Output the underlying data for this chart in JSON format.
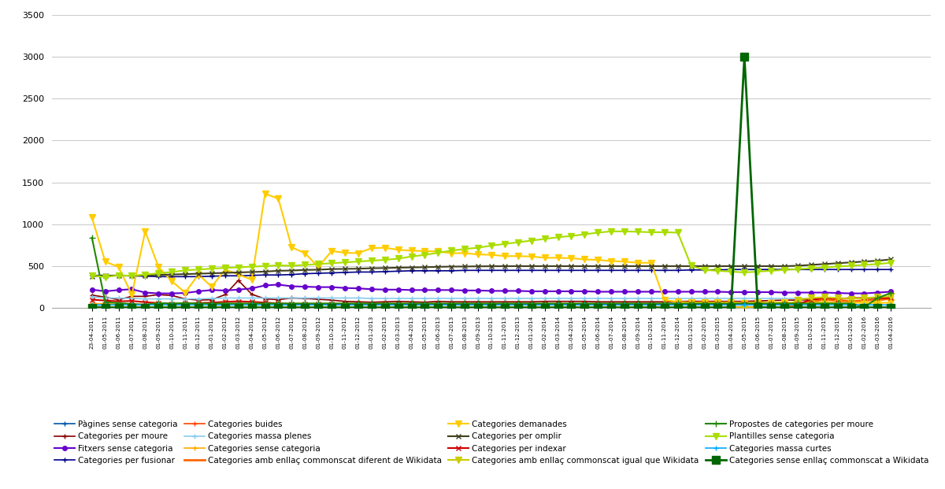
{
  "series": [
    {
      "label": "Pàgines sense categoria",
      "color": "#0055AA",
      "marker": "+",
      "markersize": 5,
      "linewidth": 1.2,
      "values": [
        18,
        15,
        12,
        14,
        12,
        10,
        10,
        10,
        10,
        10,
        10,
        10,
        10,
        10,
        10,
        10,
        10,
        10,
        10,
        10,
        10,
        10,
        10,
        10,
        10,
        10,
        10,
        10,
        10,
        10,
        10,
        10,
        10,
        10,
        10,
        10,
        10,
        10,
        10,
        10,
        10,
        10,
        10,
        10,
        10,
        10,
        10,
        10,
        10,
        10,
        10,
        10,
        10,
        10,
        10,
        10,
        10,
        10,
        10,
        10,
        10
      ]
    },
    {
      "label": "Categories per moure",
      "color": "#880000",
      "marker": "+",
      "markersize": 5,
      "linewidth": 1.2,
      "values": [
        155,
        130,
        100,
        140,
        140,
        160,
        150,
        110,
        95,
        100,
        160,
        330,
        165,
        110,
        100,
        120,
        115,
        105,
        95,
        80,
        75,
        70,
        75,
        80,
        75,
        70,
        80,
        75,
        75,
        75,
        75,
        75,
        75,
        75,
        80,
        80,
        80,
        80,
        75,
        75,
        75,
        75,
        75,
        75,
        80,
        80,
        80,
        80,
        80,
        80,
        85,
        90,
        95,
        95,
        100,
        105,
        115,
        120,
        120,
        120,
        120
      ]
    },
    {
      "label": "Fitxers sense categoria",
      "color": "#6600CC",
      "marker": "o",
      "markersize": 4,
      "linewidth": 1.5,
      "values": [
        220,
        200,
        215,
        225,
        185,
        175,
        175,
        180,
        200,
        215,
        210,
        220,
        235,
        270,
        280,
        260,
        255,
        250,
        250,
        240,
        235,
        225,
        220,
        220,
        215,
        215,
        215,
        215,
        210,
        210,
        205,
        205,
        205,
        200,
        200,
        200,
        200,
        200,
        195,
        195,
        195,
        195,
        195,
        195,
        195,
        195,
        195,
        195,
        190,
        190,
        190,
        190,
        185,
        185,
        185,
        185,
        180,
        175,
        175,
        185,
        195
      ]
    },
    {
      "label": "Categories per fusionar",
      "color": "#000088",
      "marker": "+",
      "markersize": 5,
      "linewidth": 1.2,
      "values": [
        390,
        390,
        385,
        385,
        380,
        375,
        375,
        375,
        375,
        380,
        385,
        385,
        390,
        395,
        395,
        400,
        410,
        415,
        420,
        425,
        430,
        430,
        435,
        440,
        445,
        445,
        445,
        445,
        450,
        450,
        450,
        450,
        450,
        450,
        450,
        450,
        450,
        450,
        450,
        450,
        450,
        450,
        450,
        450,
        450,
        455,
        455,
        455,
        460,
        460,
        460,
        460,
        460,
        460,
        460,
        460,
        460,
        460,
        460,
        460,
        460
      ]
    },
    {
      "label": "Categories buides",
      "color": "#FF4400",
      "marker": "+",
      "markersize": 5,
      "linewidth": 1.2,
      "values": [
        10,
        8,
        8,
        8,
        8,
        8,
        8,
        8,
        8,
        8,
        8,
        8,
        8,
        8,
        8,
        8,
        8,
        8,
        8,
        8,
        8,
        8,
        8,
        8,
        8,
        8,
        8,
        8,
        8,
        8,
        8,
        8,
        8,
        8,
        8,
        8,
        8,
        8,
        8,
        8,
        8,
        8,
        8,
        8,
        8,
        8,
        8,
        8,
        8,
        8,
        8,
        8,
        8,
        8,
        8,
        8,
        8,
        8,
        8,
        8,
        8
      ]
    },
    {
      "label": "Categories massa plenes",
      "color": "#88CCEE",
      "marker": "+",
      "markersize": 5,
      "linewidth": 1.2,
      "values": [
        130,
        120,
        120,
        115,
        110,
        110,
        110,
        110,
        110,
        115,
        120,
        120,
        120,
        120,
        120,
        120,
        120,
        120,
        120,
        120,
        120,
        115,
        115,
        115,
        115,
        115,
        115,
        115,
        115,
        115,
        115,
        115,
        115,
        115,
        115,
        115,
        115,
        115,
        115,
        115,
        115,
        115,
        115,
        115,
        115,
        115,
        115,
        115,
        115,
        115,
        115,
        115,
        115,
        115,
        115,
        115,
        115,
        115,
        115,
        115,
        115
      ]
    },
    {
      "label": "Categories sense categoria",
      "color": "#FFAA00",
      "marker": "+",
      "markersize": 5,
      "linewidth": 1.2,
      "values": [
        55,
        50,
        45,
        48,
        42,
        40,
        38,
        38,
        40,
        42,
        45,
        48,
        50,
        52,
        50,
        48,
        45,
        44,
        42,
        40,
        40,
        38,
        38,
        38,
        38,
        38,
        38,
        38,
        38,
        38,
        38,
        38,
        38,
        38,
        38,
        38,
        38,
        38,
        38,
        38,
        38,
        38,
        38,
        38,
        38,
        38,
        38,
        38,
        38,
        38,
        38,
        38,
        38,
        38,
        38,
        38,
        38,
        38,
        38,
        80,
        120
      ]
    },
    {
      "label": "Categories amb enllaç commonscat diferent de Wikidata",
      "color": "#FF6600",
      "marker": "none",
      "markersize": 4,
      "linewidth": 2.0,
      "values": [
        5,
        5,
        5,
        5,
        5,
        5,
        5,
        5,
        5,
        5,
        5,
        5,
        5,
        5,
        5,
        5,
        5,
        5,
        5,
        5,
        5,
        5,
        5,
        5,
        5,
        5,
        5,
        5,
        5,
        5,
        5,
        5,
        5,
        5,
        5,
        5,
        5,
        5,
        5,
        5,
        5,
        5,
        5,
        5,
        5,
        5,
        5,
        5,
        5,
        5,
        5,
        5,
        5,
        50,
        80,
        100,
        90,
        80,
        90,
        100,
        110
      ]
    },
    {
      "label": "Categories demanades",
      "color": "#FFCC00",
      "marker": "v",
      "markersize": 6,
      "linewidth": 1.5,
      "values": [
        1080,
        555,
        490,
        160,
        915,
        490,
        320,
        185,
        400,
        255,
        460,
        400,
        340,
        1365,
        1305,
        725,
        655,
        490,
        680,
        660,
        655,
        715,
        720,
        695,
        685,
        680,
        675,
        655,
        655,
        640,
        635,
        620,
        620,
        615,
        600,
        600,
        595,
        580,
        575,
        560,
        555,
        540,
        540,
        95,
        75,
        65,
        70,
        65,
        70,
        60,
        70,
        60,
        70,
        60,
        65,
        65,
        65,
        60,
        65,
        60,
        65
      ]
    },
    {
      "label": "Categories per omplir",
      "color": "#404020",
      "marker": "x",
      "markersize": 5,
      "linewidth": 1.5,
      "values": [
        380,
        385,
        390,
        385,
        390,
        395,
        400,
        405,
        410,
        415,
        420,
        425,
        430,
        435,
        445,
        448,
        455,
        458,
        465,
        468,
        470,
        475,
        478,
        482,
        485,
        488,
        492,
        495,
        496,
        498,
        499,
        500,
        500,
        500,
        500,
        500,
        500,
        500,
        500,
        500,
        500,
        500,
        500,
        500,
        500,
        500,
        500,
        500,
        500,
        500,
        500,
        500,
        500,
        505,
        515,
        525,
        535,
        545,
        555,
        565,
        580
      ]
    },
    {
      "label": "Categories per indexar",
      "color": "#CC0000",
      "marker": "x",
      "markersize": 5,
      "linewidth": 1.5,
      "values": [
        100,
        90,
        80,
        85,
        70,
        60,
        50,
        55,
        60,
        65,
        75,
        80,
        75,
        65,
        55,
        50,
        50,
        50,
        50,
        50,
        48,
        48,
        48,
        45,
        45,
        45,
        45,
        45,
        45,
        45,
        45,
        45,
        45,
        45,
        45,
        45,
        45,
        45,
        45,
        45,
        45,
        45,
        45,
        45,
        45,
        45,
        45,
        45,
        45,
        45,
        45,
        45,
        45,
        45,
        100,
        120,
        110,
        115,
        120,
        120,
        120
      ]
    },
    {
      "label": "Categories amb enllaç commonscat igual que Wikidata",
      "color": "#CCCC00",
      "marker": "v",
      "markersize": 6,
      "linewidth": 1.5,
      "values": [
        5,
        5,
        5,
        5,
        5,
        5,
        5,
        5,
        5,
        5,
        5,
        5,
        5,
        5,
        5,
        5,
        5,
        5,
        5,
        5,
        5,
        5,
        5,
        5,
        5,
        5,
        5,
        5,
        5,
        5,
        5,
        5,
        5,
        5,
        5,
        5,
        5,
        5,
        5,
        5,
        5,
        5,
        5,
        5,
        5,
        5,
        5,
        5,
        5,
        5,
        5,
        5,
        5,
        100,
        120,
        130,
        120,
        110,
        120,
        130,
        140
      ]
    },
    {
      "label": "Propostes de categories per moure",
      "color": "#228800",
      "marker": "+",
      "markersize": 6,
      "linewidth": 1.5,
      "values": [
        840,
        70,
        60,
        50,
        40,
        60,
        55,
        60,
        55,
        55,
        55,
        55,
        55,
        55,
        55,
        55,
        55,
        55,
        55,
        55,
        55,
        55,
        55,
        55,
        55,
        55,
        55,
        55,
        55,
        55,
        55,
        55,
        55,
        55,
        55,
        55,
        55,
        55,
        55,
        55,
        55,
        55,
        55,
        55,
        55,
        55,
        55,
        55,
        55,
        55,
        55,
        55,
        55,
        55,
        55,
        55,
        55,
        55,
        10,
        120,
        180
      ]
    },
    {
      "label": "Plantilles sense categoria",
      "color": "#AADD00",
      "marker": "v",
      "markersize": 6,
      "linewidth": 1.5,
      "values": [
        390,
        370,
        390,
        385,
        400,
        415,
        430,
        450,
        460,
        470,
        480,
        485,
        495,
        500,
        510,
        505,
        515,
        525,
        535,
        545,
        555,
        565,
        575,
        590,
        615,
        635,
        660,
        685,
        705,
        720,
        745,
        765,
        785,
        805,
        825,
        845,
        860,
        880,
        900,
        915,
        915,
        910,
        905,
        905,
        900,
        505,
        455,
        445,
        435,
        425,
        435,
        445,
        455,
        465,
        475,
        485,
        495,
        505,
        515,
        525,
        540
      ]
    },
    {
      "label": "Categories massa curtes",
      "color": "#00AAFF",
      "marker": "+",
      "markersize": 5,
      "linewidth": 1.2,
      "values": [
        40,
        38,
        38,
        38,
        38,
        38,
        38,
        38,
        38,
        38,
        38,
        38,
        38,
        38,
        38,
        38,
        38,
        38,
        38,
        38,
        38,
        38,
        38,
        38,
        38,
        38,
        38,
        38,
        38,
        38,
        38,
        38,
        38,
        38,
        38,
        38,
        38,
        38,
        38,
        38,
        38,
        38,
        38,
        38,
        38,
        38,
        38,
        38,
        38,
        38,
        38,
        38,
        38,
        38,
        38,
        38,
        38,
        38,
        38,
        38,
        38
      ]
    },
    {
      "label": "Categories sense enllaç commonscat a Wikidata",
      "color": "#006600",
      "marker": "s",
      "markersize": 7,
      "linewidth": 2.0,
      "values": [
        5,
        5,
        5,
        5,
        5,
        5,
        5,
        5,
        5,
        5,
        5,
        5,
        5,
        5,
        5,
        5,
        5,
        5,
        5,
        5,
        5,
        5,
        5,
        5,
        5,
        5,
        5,
        5,
        5,
        5,
        5,
        5,
        5,
        5,
        5,
        5,
        5,
        5,
        5,
        5,
        5,
        5,
        5,
        5,
        5,
        5,
        5,
        5,
        5,
        3000,
        10,
        5,
        5,
        5,
        5,
        5,
        5,
        5,
        5,
        5,
        5
      ]
    }
  ],
  "x_labels": [
    "23-04-2011",
    "01-05-2011",
    "01-06-2011",
    "01-07-2011",
    "01-08-2011",
    "01-09-2011",
    "01-10-2011",
    "01-11-2011",
    "01-12-2011",
    "01-01-2012",
    "01-02-2012",
    "01-03-2012",
    "01-04-2012",
    "01-05-2012",
    "01-06-2012",
    "01-07-2012",
    "01-08-2012",
    "01-09-2012",
    "01-10-2012",
    "01-11-2012",
    "01-12-2012",
    "01-01-2013",
    "01-02-2013",
    "01-03-2013",
    "01-04-2013",
    "01-05-2013",
    "01-06-2013",
    "01-07-2013",
    "01-08-2013",
    "01-09-2013",
    "01-10-2013",
    "01-11-2013",
    "01-12-2013",
    "01-01-2014",
    "01-02-2014",
    "01-03-2014",
    "01-04-2014",
    "01-05-2014",
    "01-06-2014",
    "01-07-2014",
    "01-08-2014",
    "01-09-2014",
    "01-10-2014",
    "01-11-2014",
    "01-12-2014",
    "01-01-2015",
    "01-02-2015",
    "01-03-2015",
    "01-04-2015",
    "01-05-2015",
    "01-06-2015",
    "01-07-2015",
    "01-08-2015",
    "01-09-2015",
    "01-10-2015",
    "01-11-2015",
    "01-12-2015",
    "01-01-2016",
    "01-02-2016",
    "01-03-2016",
    "01-04-2016"
  ],
  "legend_order": [
    "Pàgines sense categoria",
    "Categories per moure",
    "Fitxers sense categoria",
    "Categories per fusionar",
    "Categories buides",
    "Categories massa plenes",
    "Categories sense categoria",
    "Categories amb enllaç commonscat diferent de Wikidata",
    "Categories demanades",
    "Categories per omplir",
    "Categories per indexar",
    "Categories amb enllaç commonscat igual que Wikidata",
    "Propostes de categories per moure",
    "Plantilles sense categoria",
    "Categories massa curtes",
    "Categories sense enllaç commonscat a Wikidata"
  ],
  "ylim": [
    0,
    3500
  ],
  "yticks": [
    0,
    500,
    1000,
    1500,
    2000,
    2500,
    3000,
    3500
  ],
  "bg_color": "#FFFFFF",
  "grid_color": "#CCCCCC"
}
